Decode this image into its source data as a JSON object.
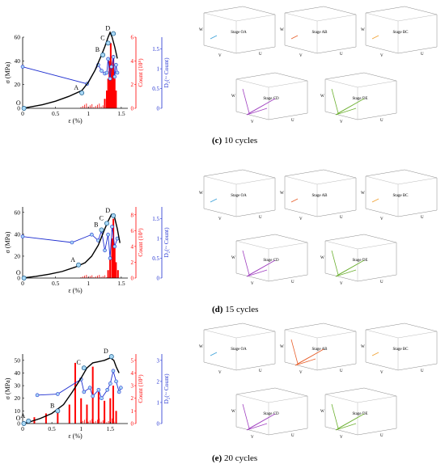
{
  "panels": [
    {
      "id": "c",
      "caption_letter": "(c)",
      "caption_text": "10 cycles",
      "stages": [
        "Stage OA",
        "Stage AB",
        "Stage BC",
        "Stage CD",
        "Stage DE"
      ]
    },
    {
      "id": "d",
      "caption_letter": "(d)",
      "caption_text": "15 cycles",
      "stages": [
        "Stage OA",
        "Stage AB",
        "Stage BC",
        "Stage CD",
        "Stage DE"
      ]
    },
    {
      "id": "e",
      "caption_letter": "(e)",
      "caption_text": "20 cycles",
      "stages": [
        "Stage OA",
        "Stage AB",
        "Stage BC",
        "Stage CD",
        "Stage DE"
      ]
    }
  ],
  "axis_labels": {
    "xlabel": "ε (%)",
    "ylabel_stress": "σ (MPa)",
    "ylabel_count": "Count (10⁵)",
    "ylabel_d2": "D₂(~ Count)"
  },
  "stage_axis_labels": {
    "u": "U",
    "v": "V",
    "w": "W"
  },
  "colors": {
    "stress": "#000000",
    "count": "#ff0000",
    "d2": "#1f2fd0",
    "d2_marker_fill": "#a9d8f5",
    "stage_OA": "#3aa0d8",
    "stage_AB": "#e8602c",
    "stage_BC": "#f0a030",
    "stage_CD": "#a040c0",
    "stage_DE": "#6cb030"
  },
  "chart_data": [
    {
      "type": "line",
      "panel": "c",
      "xlim": [
        0,
        1.6
      ],
      "xticks": [
        0,
        0.5,
        1,
        1.5
      ],
      "ylim_stress": [
        0,
        60
      ],
      "yticks_stress": [
        0,
        20,
        40,
        60
      ],
      "ylim_count": [
        0,
        6
      ],
      "yticks_count": [
        0,
        2,
        4,
        6
      ],
      "ylim_d2": [
        0,
        1.8
      ],
      "yticks_d2": [
        0,
        0.5,
        1,
        1.5
      ],
      "stress_curve": [
        [
          0,
          0
        ],
        [
          0.1,
          1
        ],
        [
          0.3,
          3
        ],
        [
          0.5,
          6
        ],
        [
          0.7,
          10
        ],
        [
          0.9,
          15
        ],
        [
          1.0,
          22
        ],
        [
          1.1,
          32
        ],
        [
          1.2,
          45
        ],
        [
          1.25,
          52
        ],
        [
          1.3,
          60
        ],
        [
          1.33,
          64
        ],
        [
          1.36,
          60
        ],
        [
          1.4,
          52
        ],
        [
          1.44,
          42
        ]
      ],
      "points": [
        {
          "label": "O",
          "x": 0.02,
          "y": 0
        },
        {
          "label": "A",
          "x": 0.9,
          "y": 13
        },
        {
          "label": "B",
          "x": 1.22,
          "y": 45
        },
        {
          "label": "C",
          "x": 1.3,
          "y": 55
        },
        {
          "label": "D",
          "x": 1.38,
          "y": 63
        }
      ],
      "d2_series": [
        [
          0,
          1.05
        ],
        [
          0.98,
          0.62
        ],
        [
          1.15,
          1.1
        ],
        [
          1.2,
          0.95
        ],
        [
          1.25,
          0.88
        ],
        [
          1.28,
          0.9
        ],
        [
          1.3,
          1.25
        ],
        [
          1.33,
          0.75
        ],
        [
          1.35,
          1.05
        ],
        [
          1.38,
          1.3
        ],
        [
          1.4,
          0.8
        ],
        [
          1.42,
          1.1
        ],
        [
          1.44,
          0.9
        ]
      ],
      "count_bars": [
        [
          1.25,
          0.8
        ],
        [
          1.28,
          1.5
        ],
        [
          1.3,
          2.5
        ],
        [
          1.32,
          4.0
        ],
        [
          1.34,
          5.5
        ],
        [
          1.36,
          3.5
        ],
        [
          1.38,
          4.5
        ],
        [
          1.4,
          2.5
        ],
        [
          1.42,
          1.5
        ]
      ]
    },
    {
      "type": "line",
      "panel": "d",
      "xlim": [
        0,
        1.6
      ],
      "xticks": [
        0,
        0.5,
        1,
        1.5
      ],
      "ylim_stress": [
        0,
        65
      ],
      "yticks_stress": [
        0,
        20,
        40,
        60
      ],
      "ylim_count": [
        0,
        9
      ],
      "yticks_count": [
        0,
        2,
        4,
        6,
        8
      ],
      "ylim_d2": [
        0,
        1.8
      ],
      "yticks_d2": [
        0,
        0.5,
        1,
        1.5
      ],
      "stress_curve": [
        [
          0,
          0
        ],
        [
          0.2,
          1.5
        ],
        [
          0.4,
          3.5
        ],
        [
          0.6,
          6
        ],
        [
          0.8,
          10
        ],
        [
          0.95,
          14
        ],
        [
          1.05,
          20
        ],
        [
          1.15,
          30
        ],
        [
          1.25,
          45
        ],
        [
          1.3,
          52
        ],
        [
          1.35,
          58
        ],
        [
          1.4,
          55
        ],
        [
          1.44,
          45
        ],
        [
          1.48,
          32
        ]
      ],
      "points": [
        {
          "label": "O",
          "x": 0.02,
          "y": 0
        },
        {
          "label": "A",
          "x": 0.85,
          "y": 12
        },
        {
          "label": "B",
          "x": 1.2,
          "y": 44
        },
        {
          "label": "C",
          "x": 1.28,
          "y": 50
        },
        {
          "label": "D",
          "x": 1.38,
          "y": 57
        }
      ],
      "d2_series": [
        [
          0,
          1.05
        ],
        [
          0.75,
          0.9
        ],
        [
          1.05,
          1.1
        ],
        [
          1.15,
          0.95
        ],
        [
          1.2,
          1.2
        ],
        [
          1.25,
          0.7
        ],
        [
          1.3,
          1.1
        ],
        [
          1.33,
          0.5
        ],
        [
          1.36,
          1.3
        ],
        [
          1.4,
          0.8
        ],
        [
          1.44,
          1.0
        ]
      ],
      "count_bars": [
        [
          1.3,
          1.0
        ],
        [
          1.33,
          2.5
        ],
        [
          1.36,
          5.0
        ],
        [
          1.38,
          7.5
        ],
        [
          1.4,
          4.0
        ],
        [
          1.42,
          2.0
        ],
        [
          1.45,
          1.0
        ]
      ]
    },
    {
      "type": "line",
      "panel": "e",
      "xlim": [
        0,
        1.8
      ],
      "xticks": [
        0,
        0.5,
        1,
        1.5
      ],
      "ylim_stress": [
        0,
        55
      ],
      "yticks_stress": [
        0,
        10,
        20,
        30,
        40,
        50
      ],
      "ylim_count": [
        0,
        5.5
      ],
      "yticks_count": [
        0,
        1,
        2,
        3,
        4,
        5
      ],
      "ylim_d2": [
        0,
        3.3
      ],
      "yticks_d2": [
        0,
        1,
        2,
        3
      ],
      "stress_curve": [
        [
          0,
          0
        ],
        [
          0.1,
          1
        ],
        [
          0.3,
          4
        ],
        [
          0.5,
          8
        ],
        [
          0.7,
          15
        ],
        [
          0.85,
          25
        ],
        [
          1.0,
          36
        ],
        [
          1.1,
          44
        ],
        [
          1.2,
          48
        ],
        [
          1.3,
          49
        ],
        [
          1.4,
          50
        ],
        [
          1.5,
          52
        ],
        [
          1.56,
          50
        ],
        [
          1.6,
          45
        ],
        [
          1.65,
          40
        ]
      ],
      "points": [
        {
          "label": "O",
          "x": 0.02,
          "y": 0
        },
        {
          "label": "A",
          "x": 0.1,
          "y": 2
        },
        {
          "label": "B",
          "x": 0.6,
          "y": 10
        },
        {
          "label": "C",
          "x": 1.05,
          "y": 44
        },
        {
          "label": "D",
          "x": 1.52,
          "y": 53
        }
      ],
      "d2_series": [
        [
          0.25,
          1.35
        ],
        [
          0.6,
          1.4
        ],
        [
          1.0,
          2.1
        ],
        [
          1.05,
          1.5
        ],
        [
          1.15,
          1.7
        ],
        [
          1.2,
          1.3
        ],
        [
          1.3,
          1.6
        ],
        [
          1.35,
          1.2
        ],
        [
          1.45,
          1.6
        ],
        [
          1.5,
          1.9
        ],
        [
          1.55,
          2.5
        ],
        [
          1.6,
          2.0
        ],
        [
          1.65,
          1.5
        ],
        [
          1.68,
          1.7
        ]
      ],
      "count_bars": [
        [
          0.2,
          0.5
        ],
        [
          0.4,
          0.8
        ],
        [
          0.6,
          1.2
        ],
        [
          0.8,
          1.5
        ],
        [
          0.9,
          4.8
        ],
        [
          1.0,
          2.0
        ],
        [
          1.1,
          1.5
        ],
        [
          1.2,
          4.5
        ],
        [
          1.3,
          2.5
        ],
        [
          1.4,
          1.8
        ],
        [
          1.5,
          2.0
        ],
        [
          1.55,
          3.0
        ],
        [
          1.6,
          1.0
        ]
      ]
    }
  ]
}
